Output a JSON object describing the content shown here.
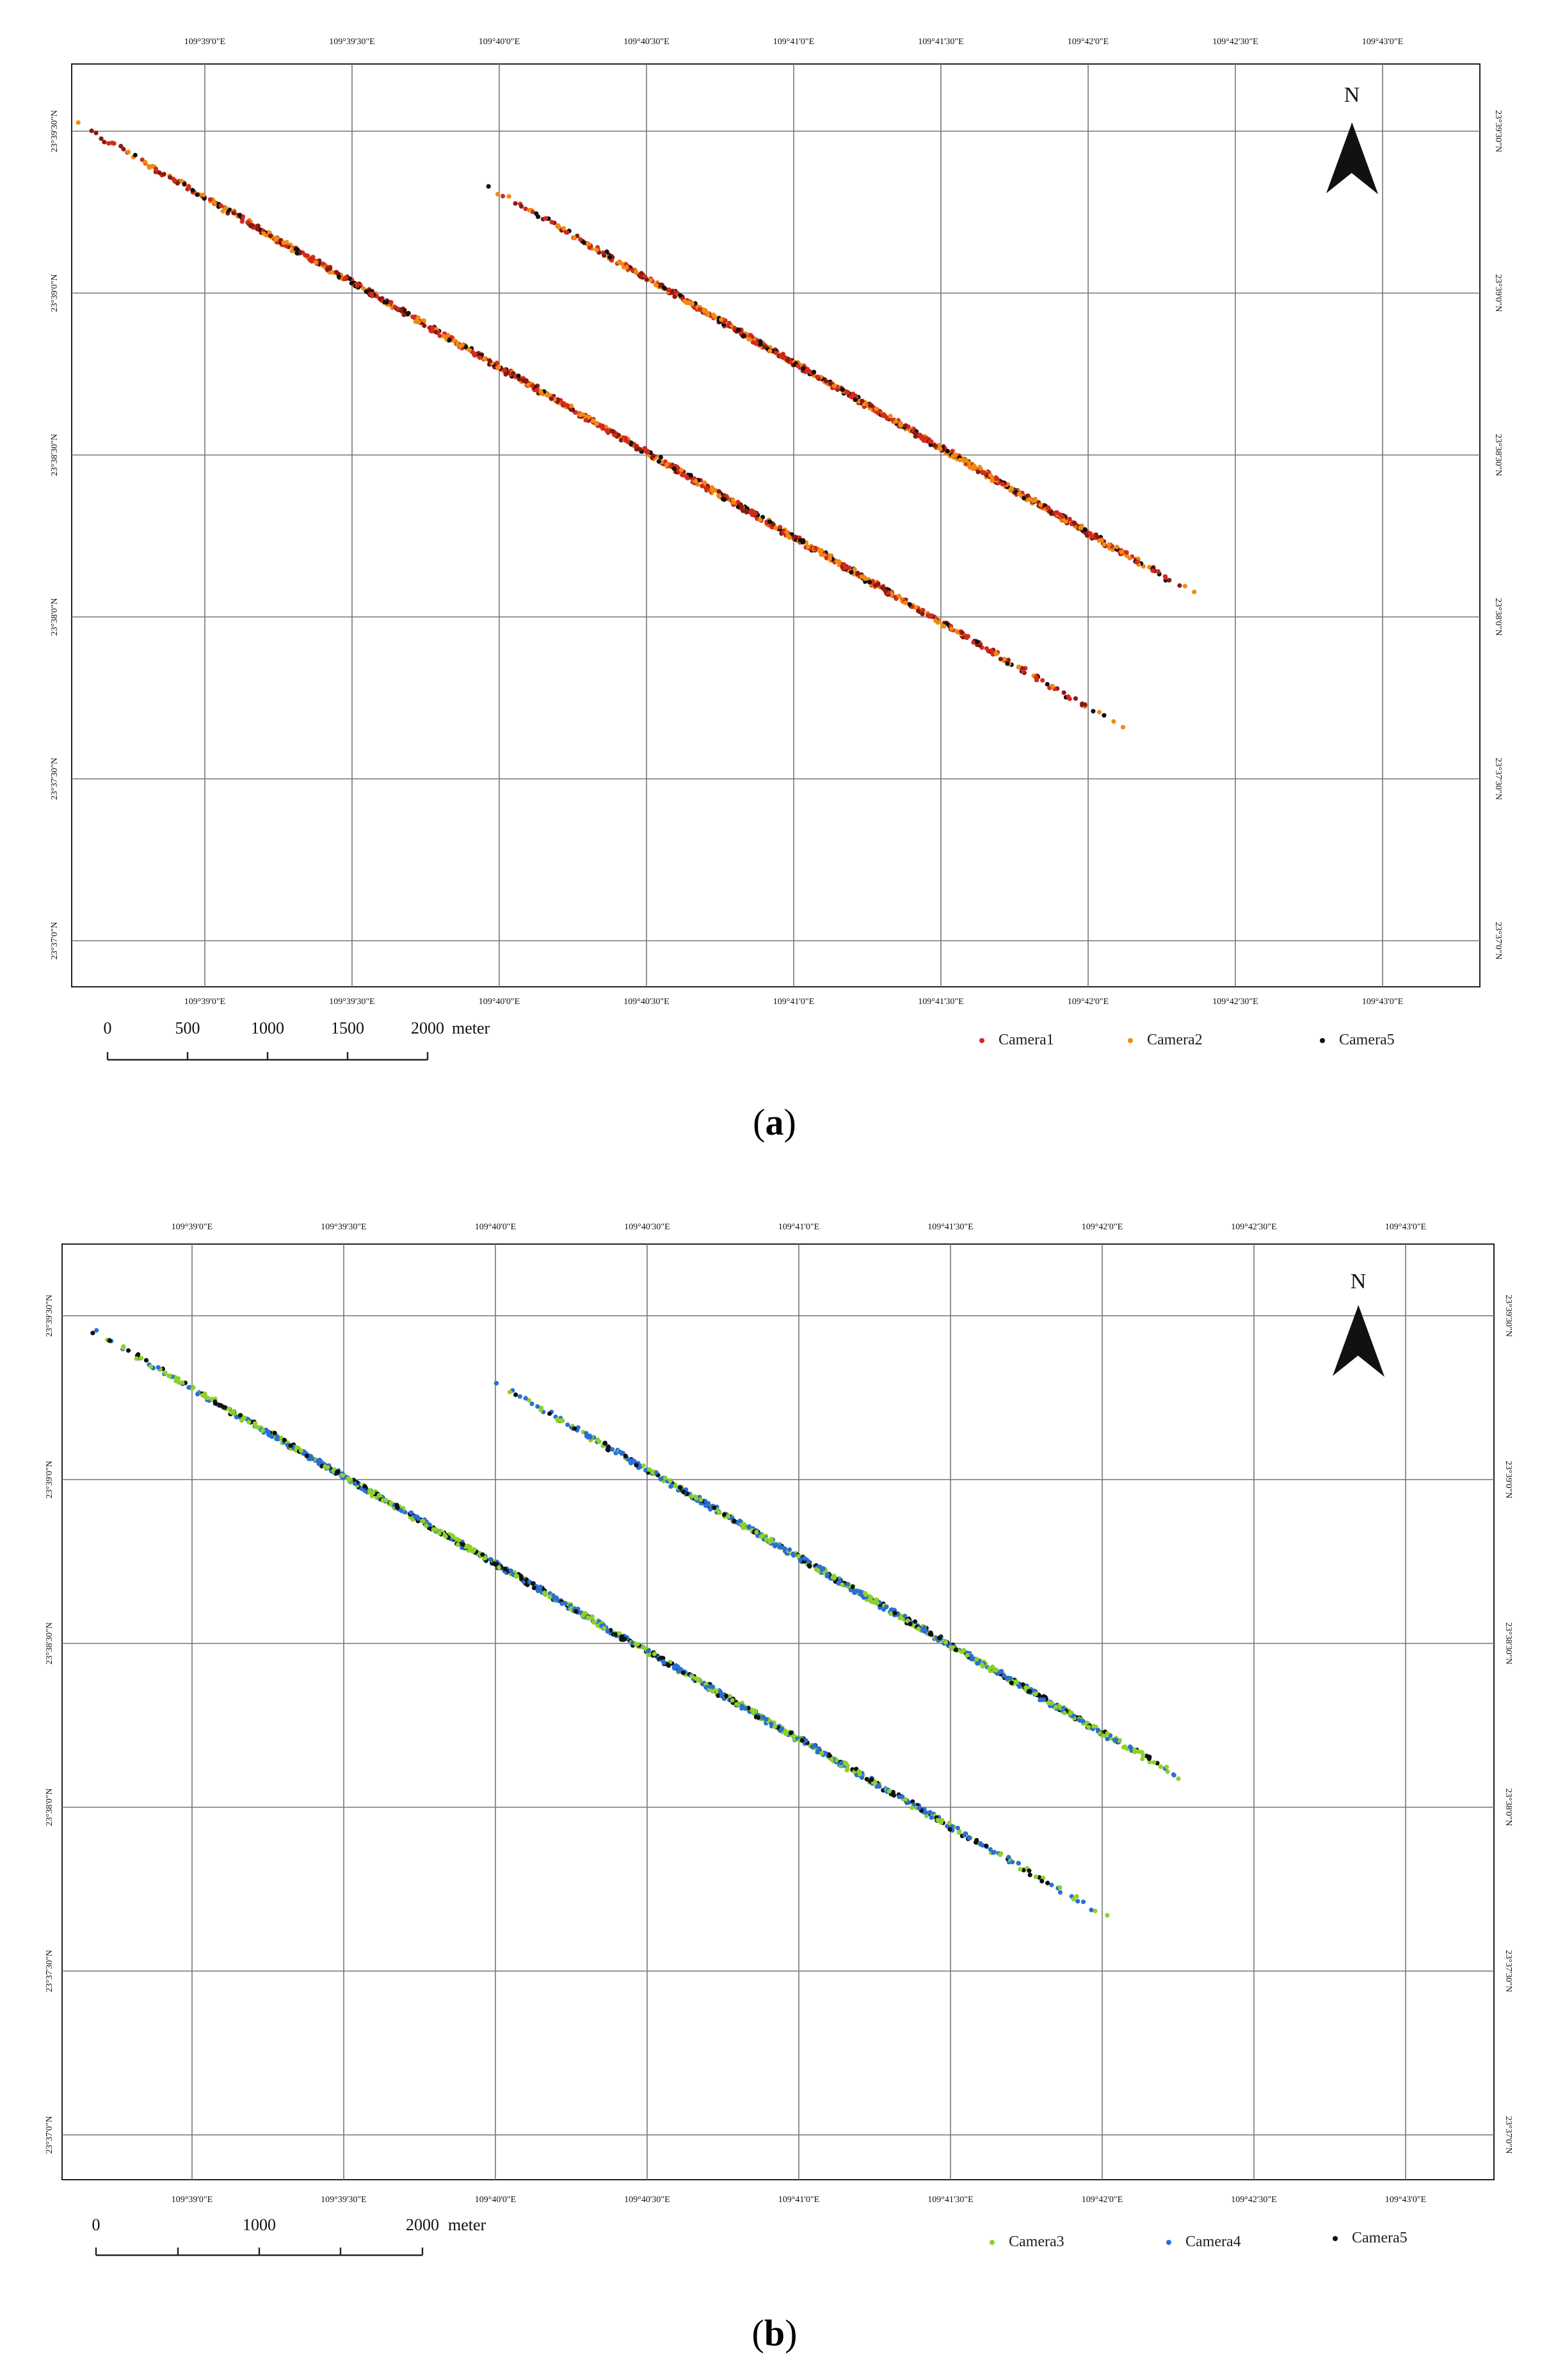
{
  "panels": [
    {
      "id": "a",
      "caption_open": "(",
      "caption_letter": "a",
      "caption_close": ")",
      "lon_ticks": [
        "109°39'0\"E",
        "109°39'30\"E",
        "109°40'0\"E",
        "109°40'30\"E",
        "109°41'0\"E",
        "109°41'30\"E",
        "109°42'0\"E",
        "109°42'30\"E",
        "109°43'0\"E"
      ],
      "lat_ticks": [
        "23°39'30\"N",
        "23°39'0\"N",
        "23°38'30\"N",
        "23°38'0\"N",
        "23°37'30\"N",
        "23°37'0\"N"
      ],
      "north_label": "N",
      "scale": {
        "labels": [
          "0",
          "500",
          "1000",
          "1500",
          "2000"
        ],
        "unit": "meter"
      },
      "legend": [
        {
          "name": "Camera1",
          "color": "#d42a1e"
        },
        {
          "name": "Camera2",
          "color": "#f08a12"
        },
        {
          "name": "Camera5",
          "color": "#111111"
        }
      ]
    },
    {
      "id": "b",
      "caption_open": "(",
      "caption_letter": "b",
      "caption_close": ")",
      "lon_ticks": [
        "109°39'0\"E",
        "109°39'30\"E",
        "109°40'0\"E",
        "109°40'30\"E",
        "109°41'0\"E",
        "109°41'30\"E",
        "109°42'0\"E",
        "109°42'30\"E",
        "109°43'0\"E"
      ],
      "lat_ticks": [
        "23°39'30\"N",
        "23°39'0\"N",
        "23°38'30\"N",
        "23°38'0\"N",
        "23°37'30\"N",
        "23°37'0\"N"
      ],
      "north_label": "N",
      "scale": {
        "labels": [
          "0",
          "1000",
          "2000"
        ],
        "unit": "meter"
      },
      "legend": [
        {
          "name": "Camera3",
          "color": "#8fd12a"
        },
        {
          "name": "Camera4",
          "color": "#2a6fd6"
        },
        {
          "name": "Camera5",
          "color": "#111111"
        }
      ]
    }
  ]
}
